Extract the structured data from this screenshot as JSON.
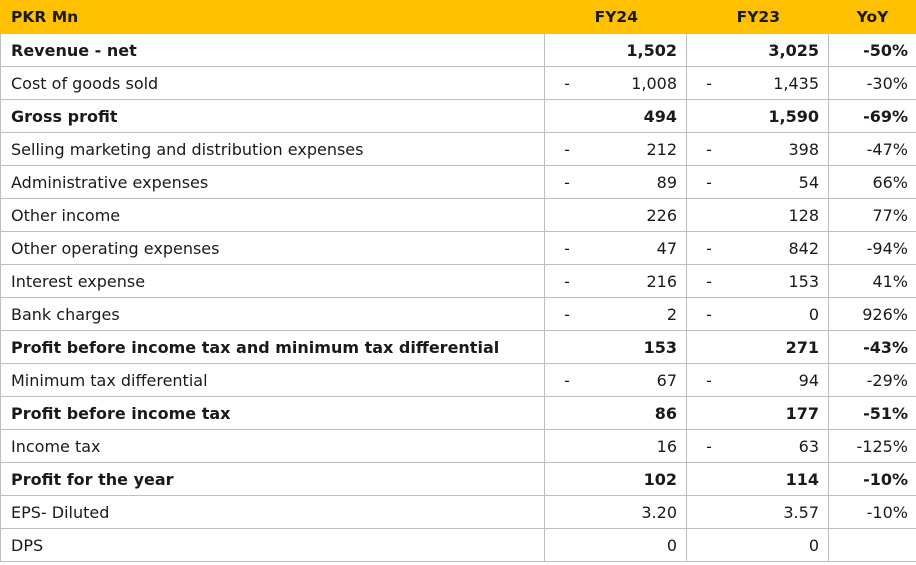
{
  "header": {
    "label": "PKR Mn",
    "fy24": "FY24",
    "fy23": "FY23",
    "yoy": "YoY"
  },
  "rows": [
    {
      "label": "Revenue - net",
      "fy24_sign": "",
      "fy24": "1,502",
      "fy23_sign": "",
      "fy23": "3,025",
      "yoy": "-50%"
    },
    {
      "label": "Cost of goods sold",
      "fy24_sign": "-",
      "fy24": "1,008",
      "fy23_sign": "-",
      "fy23": "1,435",
      "yoy": "-30%"
    },
    {
      "label": "Gross profit",
      "fy24_sign": "",
      "fy24": "494",
      "fy23_sign": "",
      "fy23": "1,590",
      "yoy": "-69%"
    },
    {
      "label": "Selling marketing and distribution expenses",
      "fy24_sign": "-",
      "fy24": "212",
      "fy23_sign": "-",
      "fy23": "398",
      "yoy": "-47%"
    },
    {
      "label": "Administrative expenses",
      "fy24_sign": "-",
      "fy24": "89",
      "fy23_sign": "-",
      "fy23": "54",
      "yoy": "66%"
    },
    {
      "label": "Other income",
      "fy24_sign": "",
      "fy24": "226",
      "fy23_sign": "",
      "fy23": "128",
      "yoy": "77%"
    },
    {
      "label": "Other operating expenses",
      "fy24_sign": "-",
      "fy24": "47",
      "fy23_sign": "-",
      "fy23": "842",
      "yoy": "-94%"
    },
    {
      "label": "Interest expense",
      "fy24_sign": "-",
      "fy24": "216",
      "fy23_sign": "-",
      "fy23": "153",
      "yoy": "41%"
    },
    {
      "label": "Bank charges",
      "fy24_sign": "-",
      "fy24": "2",
      "fy23_sign": "-",
      "fy23": "0",
      "yoy": "926%"
    },
    {
      "label": "Profit before income tax and minimum tax differential",
      "fy24_sign": "",
      "fy24": "153",
      "fy23_sign": "",
      "fy23": "271",
      "yoy": "-43%"
    },
    {
      "label": "Minimum tax differential",
      "fy24_sign": "-",
      "fy24": "67",
      "fy23_sign": "-",
      "fy23": "94",
      "yoy": "-29%"
    },
    {
      "label": "Profit before income tax",
      "fy24_sign": "",
      "fy24": "86",
      "fy23_sign": "",
      "fy23": "177",
      "yoy": "-51%"
    },
    {
      "label": "Income tax",
      "fy24_sign": "",
      "fy24": "16",
      "fy23_sign": "-",
      "fy23": "63",
      "yoy": "-125%"
    },
    {
      "label": "Profit for the year",
      "fy24_sign": "",
      "fy24": "102",
      "fy23_sign": "",
      "fy23": "114",
      "yoy": "-10%"
    },
    {
      "label": "EPS- Diluted",
      "fy24_sign": "",
      "fy24": "3.20",
      "fy23_sign": "",
      "fy23": "3.57",
      "yoy": "-10%"
    },
    {
      "label": "DPS",
      "fy24_sign": "",
      "fy24": "0",
      "fy23_sign": "",
      "fy23": "0",
      "yoy": ""
    }
  ],
  "colors": {
    "header_bg": "#ffc000",
    "grid_border": "#bfbfbf"
  }
}
